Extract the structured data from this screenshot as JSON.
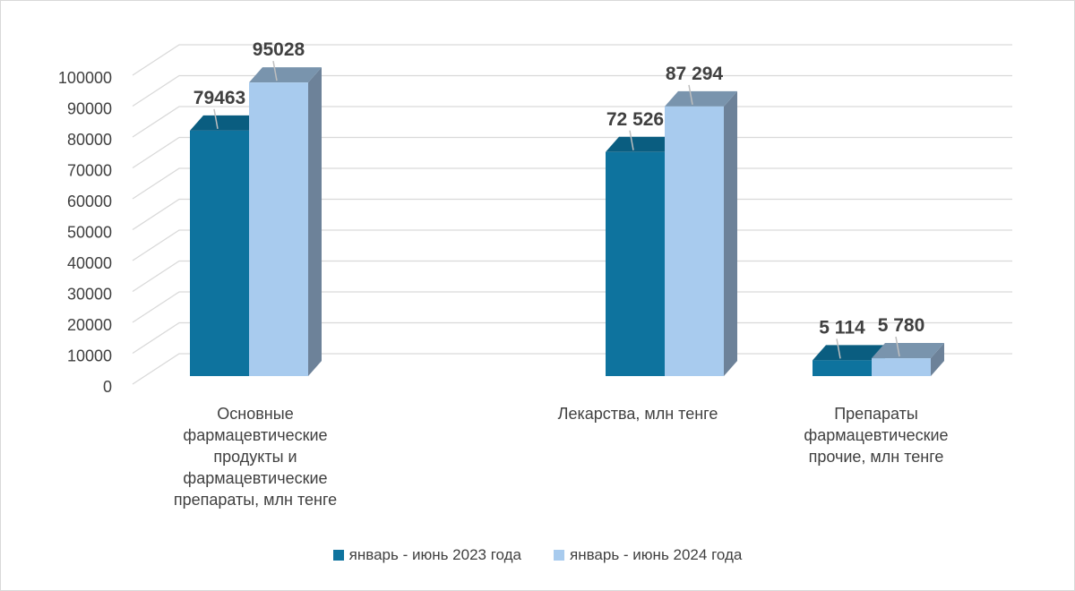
{
  "chart_data": {
    "type": "bar",
    "bar_style": "3d-clustered-column",
    "categories": [
      "Основные\nфармацевтические\nпродукты и\nфармацевтические\nпрепараты, млн тенге",
      "Лекарства, млн тенге",
      "Препараты\nфармацевтические\nпрочие, млн тенге"
    ],
    "series": [
      {
        "name": "январь - июнь 2023 года",
        "values": [
          79463,
          72526,
          5114
        ],
        "data_labels": [
          "79463",
          "72 526",
          "5 114"
        ],
        "color": "#0e739e"
      },
      {
        "name": "январь - июнь 2024 года",
        "values": [
          95028,
          87294,
          5780
        ],
        "data_labels": [
          "95028",
          "87 294",
          "5 780"
        ],
        "color": "#a8cbee"
      }
    ],
    "y_ticks": [
      "0",
      "10000",
      "20000",
      "30000",
      "40000",
      "50000",
      "60000",
      "70000",
      "80000",
      "90000",
      "100000"
    ],
    "ylim": [
      0,
      100000
    ],
    "grid": true,
    "legend_position": "bottom",
    "colors": {
      "side_face": "#6d8299",
      "top_face": "#7994ad",
      "gridline": "#d9d9d9",
      "text": "#404040"
    }
  }
}
